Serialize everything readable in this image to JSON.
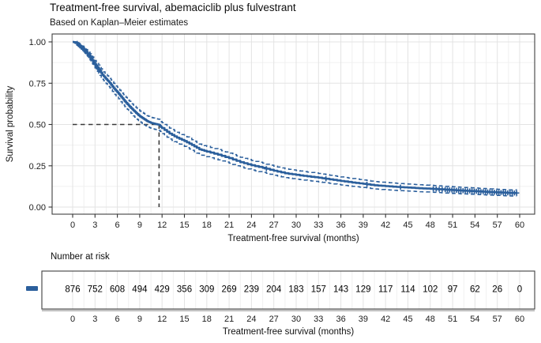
{
  "style": {
    "curve_color": "#2b5f9c",
    "ci_color": "#2b5f9c",
    "grid_major_color": "#e3e3e3",
    "grid_minor_color": "#f0f0f0",
    "panel_border_color": "#3f3f3f",
    "reference_line_color": "#3a3a3a",
    "risk_axis_line_color": "#c2c2c2",
    "text_color": "#1a1a1a",
    "background_color": "#ffffff"
  },
  "chart_data": {
    "type": "line",
    "subtype": "kaplan-meier-survival-curve",
    "title": "Treatment-free survival, abemaciclib plus fulvestrant",
    "subtitle": "Based on Kaplan–Meier estimates",
    "xlabel": "Treatment-free survival (months)",
    "ylabel": "Survival probability",
    "xlim": [
      0,
      60
    ],
    "ylim": [
      0,
      1
    ],
    "grid": "major and minor, light gray on white",
    "legend_position": "left of risk table",
    "xticks": [
      0,
      3,
      6,
      9,
      12,
      15,
      18,
      21,
      24,
      27,
      30,
      33,
      36,
      39,
      42,
      45,
      48,
      51,
      54,
      57,
      60
    ],
    "ytick_values": [
      1.0,
      0.75,
      0.5,
      0.25,
      0.0
    ],
    "ytick_labels": [
      "1.00",
      "0.75",
      "0.50",
      "0.25",
      "0.00"
    ],
    "series": [
      {
        "name": "abemaciclib plus fulvestrant",
        "line_style": "solid, stepped",
        "x": [
          0,
          0.5,
          1,
          1.5,
          2,
          2.5,
          3,
          3.5,
          4,
          4.5,
          5,
          5.5,
          6,
          6.5,
          7,
          7.5,
          8,
          8.5,
          9,
          9.5,
          10,
          10.5,
          11,
          11.6,
          12,
          13,
          14,
          15,
          16,
          17,
          18,
          19.5,
          21,
          22.5,
          24,
          25.5,
          27,
          28.5,
          30,
          31.5,
          33,
          34.5,
          36,
          37.5,
          39,
          40.5,
          42,
          43.5,
          45,
          46.5,
          48,
          49.5,
          51,
          52.5,
          54,
          55.5,
          57,
          58.5,
          59.6
        ],
        "y": [
          1.0,
          0.995,
          0.975,
          0.955,
          0.93,
          0.9,
          0.865,
          0.835,
          0.8,
          0.775,
          0.75,
          0.72,
          0.695,
          0.668,
          0.64,
          0.615,
          0.592,
          0.57,
          0.55,
          0.535,
          0.52,
          0.51,
          0.504,
          0.498,
          0.478,
          0.445,
          0.42,
          0.4,
          0.376,
          0.35,
          0.336,
          0.317,
          0.296,
          0.272,
          0.253,
          0.238,
          0.22,
          0.205,
          0.195,
          0.186,
          0.178,
          0.168,
          0.158,
          0.149,
          0.141,
          0.132,
          0.127,
          0.122,
          0.118,
          0.114,
          0.111,
          0.107,
          0.103,
          0.099,
          0.096,
          0.092,
          0.089,
          0.086,
          0.085
        ]
      }
    ],
    "confidence_interval": {
      "style": "dashed pointwise band around curve",
      "halfwidth_coeff": 0.066
    },
    "median": {
      "x_months": 11.6,
      "y_survival": 0.5,
      "style": "dashed dark reference lines to axes"
    },
    "censor_marks_months": [
      0.6,
      0.8,
      1.0,
      1.2,
      1.4,
      1.6,
      1.8,
      2.0,
      2.2,
      2.4,
      2.7,
      3.0,
      3.3,
      3.6,
      26,
      34,
      39.5,
      44,
      48.4,
      48.8,
      49.2,
      49.6,
      50.0,
      50.3,
      50.6,
      50.9,
      51.2,
      51.5,
      51.8,
      52.1,
      52.4,
      52.7,
      53.0,
      53.3,
      53.6,
      53.9,
      54.2,
      54.5,
      54.8,
      55.1,
      55.4,
      55.7,
      56.0,
      56.3,
      56.6,
      56.9,
      57.2,
      57.5,
      57.8,
      58.1,
      58.4,
      58.7,
      59.0,
      59.3,
      59.6
    ],
    "number_at_risk": {
      "heading": "Number at risk",
      "xlabel": "Treatment-free survival (months)",
      "months": [
        0,
        3,
        6,
        9,
        12,
        15,
        18,
        21,
        24,
        27,
        30,
        33,
        36,
        39,
        42,
        45,
        48,
        51,
        54,
        57,
        60
      ],
      "counts": [
        876,
        752,
        608,
        494,
        429,
        356,
        309,
        269,
        239,
        204,
        183,
        157,
        143,
        129,
        117,
        114,
        102,
        97,
        62,
        26,
        0
      ]
    }
  }
}
